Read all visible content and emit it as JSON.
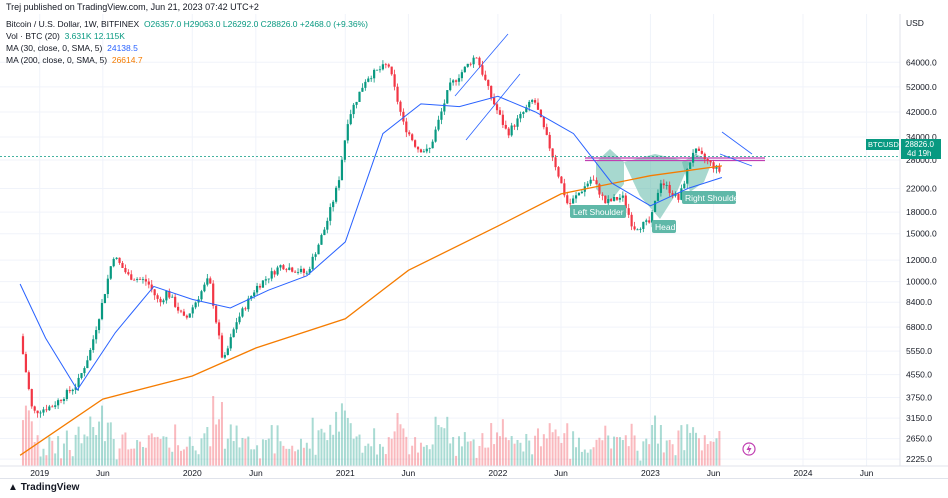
{
  "header": {
    "published_by": "Trej published on TradingView.com, Jun 21, 2023 07:42 UTC+2"
  },
  "legend": {
    "symbol": "Bitcoin / U.S. Dollar, 1W, BITFINEX",
    "ohlc": "O26357.0  H29063.0  L26292.0  C28826.0  +2468.0 (+9.36%)",
    "vol_label": "Vol · BTC (20)",
    "vol_values": "3.631K  12.115K",
    "ma30_label": "MA (30, close, 0, SMA, 5)",
    "ma30_value": "24138.5",
    "ma200_label": "MA (200, close, 0, SMA, 5)",
    "ma200_value": "26614.7"
  },
  "price_axis": {
    "currency": "USD",
    "ticks": [
      "64000.0",
      "52000.0",
      "42000.0",
      "34000.0",
      "28000.0",
      "22000.0",
      "18000.0",
      "15000.0",
      "12000.0",
      "10000.0",
      "8400.0",
      "6800.0",
      "5550.0",
      "4550.0",
      "3750.0",
      "3150.0",
      "2650.0",
      "2225.0"
    ]
  },
  "time_axis": {
    "ticks": [
      "2019",
      "Jun",
      "2020",
      "Jun",
      "2021",
      "Jun",
      "2022",
      "Jun",
      "2023",
      "Jun",
      "2024",
      "Jun"
    ]
  },
  "price_tag": {
    "symbol": "BTCUSD",
    "price": "28826.0",
    "countdown": "4d 19h"
  },
  "annotations": {
    "left_shoulder": "Left Shoulder",
    "head": "Head",
    "right_shoulder": "Right Shoulder"
  },
  "footer": {
    "brand": "TradingView"
  },
  "colors": {
    "up": "#089981",
    "down": "#f23645",
    "ma30": "#2962ff",
    "ma200": "#f57c00",
    "pattern": "#5fb8a8",
    "neckline": "#c03fb2"
  },
  "chart_data": {
    "type": "line",
    "title": "Bitcoin / U.S. Dollar, 1W, BITFINEX",
    "xlabel": "",
    "ylabel": "USD",
    "y_scale": "log",
    "ylim": [
      2100,
      90000
    ],
    "series": [
      {
        "name": "BTCUSD",
        "points": [
          [
            "2018-11-15",
            6300
          ],
          [
            "2018-12-15",
            3300
          ],
          [
            "2019-02-01",
            3500
          ],
          [
            "2019-04-01",
            4200
          ],
          [
            "2019-05-01",
            5500
          ],
          [
            "2019-06-01",
            8500
          ],
          [
            "2019-06-26",
            12500
          ],
          [
            "2019-08-01",
            10500
          ],
          [
            "2019-09-15",
            10000
          ],
          [
            "2019-10-15",
            8300
          ],
          [
            "2019-11-01",
            9200
          ],
          [
            "2019-12-15",
            7200
          ],
          [
            "2020-02-10",
            10300
          ],
          [
            "2020-03-15",
            5000
          ],
          [
            "2020-04-15",
            7100
          ],
          [
            "2020-06-01",
            9500
          ],
          [
            "2020-08-01",
            11500
          ],
          [
            "2020-10-01",
            10700
          ],
          [
            "2020-11-15",
            16000
          ],
          [
            "2020-12-15",
            23000
          ],
          [
            "2021-01-08",
            40000
          ],
          [
            "2021-02-20",
            56000
          ],
          [
            "2021-04-14",
            63000
          ],
          [
            "2021-05-20",
            38000
          ],
          [
            "2021-06-22",
            31000
          ],
          [
            "2021-07-20",
            30000
          ],
          [
            "2021-09-07",
            52000
          ],
          [
            "2021-11-10",
            68000
          ],
          [
            "2021-12-15",
            48000
          ],
          [
            "2022-01-24",
            35000
          ],
          [
            "2022-03-28",
            47000
          ],
          [
            "2022-05-12",
            29000
          ],
          [
            "2022-06-18",
            19000
          ],
          [
            "2022-08-14",
            24000
          ],
          [
            "2022-09-15",
            19500
          ],
          [
            "2022-10-26",
            20500
          ],
          [
            "2022-11-21",
            15800
          ],
          [
            "2023-01-01",
            16500
          ],
          [
            "2023-01-25",
            23500
          ],
          [
            "2023-03-10",
            20000
          ],
          [
            "2023-04-14",
            30500
          ],
          [
            "2023-06-15",
            25500
          ],
          [
            "2023-06-21",
            28826
          ]
        ]
      },
      {
        "name": "MA (30, close, 0, SMA, 5)",
        "points": [
          [
            "2018-11-15",
            9800
          ],
          [
            "2019-01-15",
            6200
          ],
          [
            "2019-04-01",
            4000
          ],
          [
            "2019-07-01",
            6500
          ],
          [
            "2019-10-01",
            9600
          ],
          [
            "2020-01-01",
            8600
          ],
          [
            "2020-04-01",
            8000
          ],
          [
            "2020-07-01",
            9300
          ],
          [
            "2020-10-01",
            10500
          ],
          [
            "2021-01-01",
            14000
          ],
          [
            "2021-04-01",
            35000
          ],
          [
            "2021-07-01",
            45000
          ],
          [
            "2021-10-01",
            44000
          ],
          [
            "2022-01-01",
            48000
          ],
          [
            "2022-04-01",
            42000
          ],
          [
            "2022-07-01",
            35000
          ],
          [
            "2022-10-01",
            23000
          ],
          [
            "2023-01-01",
            19000
          ],
          [
            "2023-04-01",
            22000
          ],
          [
            "2023-06-21",
            24138.5
          ]
        ]
      },
      {
        "name": "MA (200, close, 0, SMA, 5)",
        "points": [
          [
            "2018-11-15",
            2300
          ],
          [
            "2019-06-01",
            3700
          ],
          [
            "2020-01-01",
            4500
          ],
          [
            "2020-06-01",
            5700
          ],
          [
            "2021-01-01",
            7300
          ],
          [
            "2021-06-01",
            11000
          ],
          [
            "2022-01-01",
            16000
          ],
          [
            "2022-06-01",
            21000
          ],
          [
            "2023-01-01",
            24500
          ],
          [
            "2023-06-21",
            26614.7
          ]
        ]
      }
    ]
  }
}
